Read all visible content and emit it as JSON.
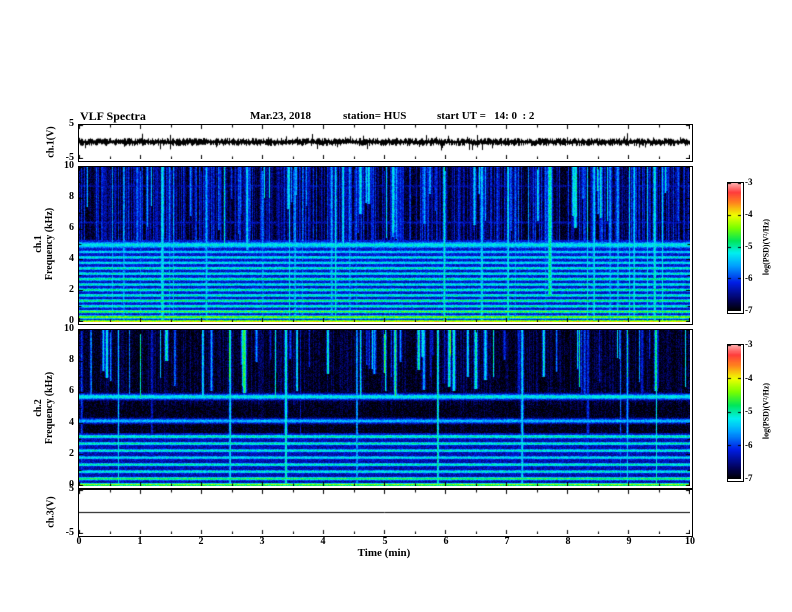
{
  "header": {
    "title": "VLF Spectra",
    "date": "Mar.23, 2018",
    "station_label": "station= HUS",
    "start_ut_label": "start UT =   14: 0  : 2"
  },
  "figure": {
    "bg": "#ffffff",
    "axis_color": "#000000"
  },
  "panels": {
    "ch1_voltage": {
      "label": "ch.1(V)",
      "ytick_labels": [
        "5",
        "-5"
      ],
      "ylim": [
        -5,
        5
      ]
    },
    "ch1_spectrogram": {
      "label_line1": "ch.1",
      "label_line2": "Frequency (kHz)",
      "yticks": [
        10,
        8,
        6,
        4,
        2,
        0
      ],
      "ylim": [
        0,
        10
      ]
    },
    "ch2_spectrogram": {
      "label_line1": "ch.2",
      "label_line2": "Frequency (kHz)",
      "yticks": [
        10,
        8,
        6,
        4,
        2,
        0
      ],
      "ylim": [
        0,
        10
      ]
    },
    "ch3_voltage": {
      "label": "ch.3(V)",
      "ytick_labels": [
        "5",
        "-5"
      ],
      "ylim": [
        -5,
        5
      ]
    }
  },
  "xaxis": {
    "label": "Time (min)",
    "ticks": [
      0,
      1,
      2,
      3,
      4,
      5,
      6,
      7,
      8,
      9,
      10
    ],
    "lim": [
      0,
      10
    ]
  },
  "colorbars": [
    {
      "label": "log(PSD)(V²/Hz)",
      "ticks": [
        -3,
        -4,
        -5,
        -6,
        -7
      ],
      "lim": [
        -7,
        -3
      ]
    },
    {
      "label": "log(PSD)(V²/Hz)",
      "ticks": [
        -3,
        -4,
        -5,
        -6,
        -7
      ],
      "lim": [
        -7,
        -3
      ]
    }
  ],
  "chart_data": [
    {
      "type": "line",
      "name": "ch1_voltage_waveform",
      "xlim": [
        0,
        10
      ],
      "ylim": [
        -5,
        5
      ],
      "xlabel": "Time (min)",
      "ylabel": "ch.1(V)",
      "description": "continuous dense noisy waveform centered on 0 V, peak amplitude about ±1 V",
      "mean_v": 0,
      "noise_peak_v": 1.0
    },
    {
      "type": "heatmap",
      "name": "ch1_spectrogram",
      "xlim": [
        0,
        10
      ],
      "ylim": [
        0,
        10
      ],
      "xlabel": "Time (min)",
      "ylabel": "ch.1 Frequency (kHz)",
      "zlabel": "log(PSD)(V²/Hz)",
      "zlim": [
        -7,
        -3
      ],
      "colormap": "rainbow-black-base",
      "floors": [
        {
          "f_range": [
            0,
            5.3
          ],
          "psd": -6.25
        },
        {
          "f_range": [
            5.3,
            10
          ],
          "psd": -6.9
        }
      ],
      "bands": [
        {
          "f": 0.08,
          "w": 0.07,
          "psd": -3.9
        },
        {
          "f": 0.35,
          "w": 0.09,
          "psd": -4.35
        },
        {
          "f": 0.7,
          "w": 0.09,
          "psd": -4.6
        },
        {
          "f": 1.05,
          "w": 0.09,
          "psd": -5.0
        },
        {
          "f": 1.4,
          "w": 0.09,
          "psd": -4.8
        },
        {
          "f": 1.75,
          "w": 0.09,
          "psd": -5.0
        },
        {
          "f": 2.1,
          "w": 0.09,
          "psd": -4.9
        },
        {
          "f": 2.45,
          "w": 0.09,
          "psd": -5.1
        },
        {
          "f": 2.8,
          "w": 0.09,
          "psd": -4.9
        },
        {
          "f": 3.15,
          "w": 0.09,
          "psd": -5.1
        },
        {
          "f": 3.5,
          "w": 0.09,
          "psd": -5.0
        },
        {
          "f": 3.85,
          "w": 0.09,
          "psd": -5.2
        },
        {
          "f": 4.2,
          "w": 0.09,
          "psd": -5.15
        },
        {
          "f": 4.55,
          "w": 0.09,
          "psd": -5.3
        },
        {
          "f": 5.0,
          "w": 0.18,
          "psd": -5.2
        },
        {
          "f": 6.45,
          "w": 0.07,
          "psd": -6.35
        },
        {
          "f": 8.8,
          "w": 0.07,
          "psd": -6.45
        }
      ],
      "sferics": {
        "count": 110,
        "psd_range": [
          -6.4,
          -5.0
        ],
        "full_height_fraction": 0.4,
        "hang_fmin": [
          4.5,
          8.5
        ]
      },
      "column_noise": 1.0,
      "event": {
        "t": 7.7,
        "f_range": [
          1.8,
          10
        ],
        "psd": -4.9
      }
    },
    {
      "type": "heatmap",
      "name": "ch2_spectrogram",
      "xlim": [
        0,
        10
      ],
      "ylim": [
        0,
        10
      ],
      "xlabel": "Time (min)",
      "ylabel": "ch.2 Frequency (kHz)",
      "zlabel": "log(PSD)(V²/Hz)",
      "zlim": [
        -7,
        -3
      ],
      "colormap": "rainbow-black-base",
      "floors": [
        {
          "f_range": [
            0,
            3.45
          ],
          "psd": -6.35
        },
        {
          "f_range": [
            3.45,
            10
          ],
          "psd": -6.95
        }
      ],
      "bands": [
        {
          "f": 0.12,
          "w": 0.08,
          "psd": -4.3
        },
        {
          "f": 0.5,
          "w": 0.09,
          "psd": -4.7
        },
        {
          "f": 0.95,
          "w": 0.09,
          "psd": -5.1
        },
        {
          "f": 1.4,
          "w": 0.09,
          "psd": -5.0
        },
        {
          "f": 1.85,
          "w": 0.09,
          "psd": -5.2
        },
        {
          "f": 2.3,
          "w": 0.09,
          "psd": -5.1
        },
        {
          "f": 2.75,
          "w": 0.09,
          "psd": -5.0
        },
        {
          "f": 3.2,
          "w": 0.1,
          "psd": -5.0
        },
        {
          "f": 4.2,
          "w": 0.12,
          "psd": -5.45
        },
        {
          "f": 5.75,
          "w": 0.14,
          "psd": -5.15
        }
      ],
      "sferics": {
        "count": 80,
        "psd_range": [
          -6.3,
          -4.6
        ],
        "full_height_fraction": 0.18,
        "hang_fmin": [
          5.5,
          8.5
        ]
      },
      "column_noise": 0.4,
      "event": null
    },
    {
      "type": "line",
      "name": "ch3_voltage_waveform",
      "xlim": [
        0,
        10
      ],
      "ylim": [
        -5,
        5
      ],
      "xlabel": "Time (min)",
      "ylabel": "ch.3(V)",
      "description": "flat line at 0 V (no signal)",
      "mean_v": 0,
      "noise_peak_v": 0
    }
  ]
}
